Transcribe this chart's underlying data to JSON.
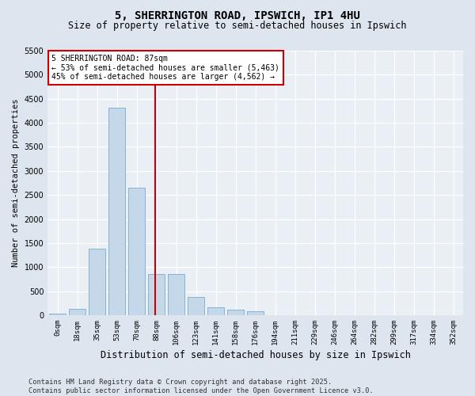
{
  "title1": "5, SHERRINGTON ROAD, IPSWICH, IP1 4HU",
  "title2": "Size of property relative to semi-detached houses in Ipswich",
  "xlabel": "Distribution of semi-detached houses by size in Ipswich",
  "ylabel": "Number of semi-detached properties",
  "categories": [
    "0sqm",
    "18sqm",
    "35sqm",
    "53sqm",
    "70sqm",
    "88sqm",
    "106sqm",
    "123sqm",
    "141sqm",
    "158sqm",
    "176sqm",
    "194sqm",
    "211sqm",
    "229sqm",
    "246sqm",
    "264sqm",
    "282sqm",
    "299sqm",
    "317sqm",
    "334sqm",
    "352sqm"
  ],
  "values": [
    30,
    130,
    1380,
    4310,
    2650,
    860,
    860,
    380,
    160,
    120,
    85,
    0,
    0,
    0,
    0,
    0,
    0,
    0,
    0,
    0,
    0
  ],
  "bar_color": "#c5d8ea",
  "bar_edge_color": "#7aaac8",
  "vline_color": "#cc0000",
  "vline_x": 4.925,
  "annotation_line1": "5 SHERRINGTON ROAD: 87sqm",
  "annotation_line2": "← 53% of semi-detached houses are smaller (5,463)",
  "annotation_line3": "45% of semi-detached houses are larger (4,562) →",
  "ylim_max": 5500,
  "yticks": [
    0,
    500,
    1000,
    1500,
    2000,
    2500,
    3000,
    3500,
    4000,
    4500,
    5000,
    5500
  ],
  "footer": "Contains HM Land Registry data © Crown copyright and database right 2025.\nContains public sector information licensed under the Open Government Licence v3.0.",
  "fig_bg": "#dde5ee",
  "plot_bg": "#eaeff5",
  "grid_color": "#ffffff",
  "annot_box_bg": "#ffffff",
  "annot_box_edge": "#cc0000"
}
